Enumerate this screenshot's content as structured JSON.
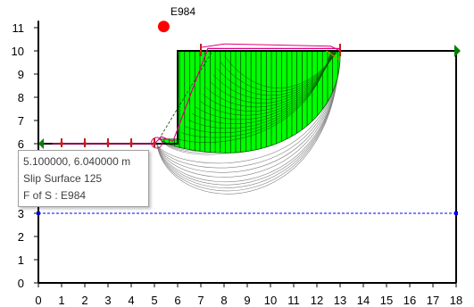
{
  "plot": {
    "x_ticks": [
      "0",
      "1",
      "2",
      "3",
      "4",
      "5",
      "6",
      "7",
      "8",
      "9",
      "10",
      "11",
      "12",
      "13",
      "14",
      "15",
      "16",
      "17",
      "18"
    ],
    "y_ticks": [
      "0",
      "1",
      "2",
      "3",
      "4",
      "5",
      "6",
      "7",
      "8",
      "9",
      "10",
      "11"
    ],
    "grid_point": {
      "x": 5.1,
      "y": 6.04
    },
    "marker": {
      "label": "E984",
      "x": 5.4,
      "y": 11.05,
      "color": "#ff0000"
    },
    "colors": {
      "slide_fill": "#00ff00",
      "slope_line": "#000000",
      "slip_surfaces": "#808080",
      "limits": "#e0007f",
      "water_table": "#0000ff",
      "boundary_markers": "#c02020"
    },
    "water_table_y": 3
  },
  "tooltip": {
    "line1": "5.100000, 6.040000 m",
    "line2": "Slip Surface 125",
    "line3": "F of S : E984"
  }
}
